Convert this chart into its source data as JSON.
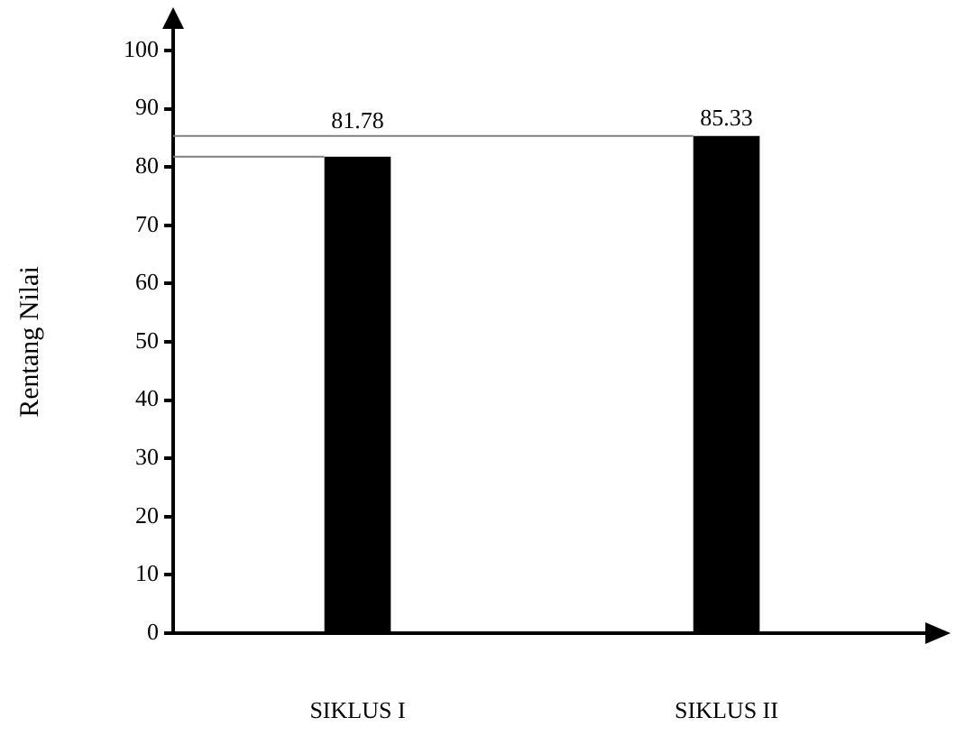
{
  "chart_data": {
    "type": "bar",
    "ylabel": "Rentang Nilai",
    "categories": [
      "SIKLUS I",
      "SIKLUS II"
    ],
    "values": [
      81.78,
      85.33
    ],
    "color": "#000000",
    "ylim": [
      0,
      100
    ],
    "yticks": [
      0,
      10,
      20,
      30,
      40,
      50,
      60,
      70,
      80,
      90,
      100
    ],
    "data_labels": true,
    "grid": false,
    "legend": false,
    "ref_lines": [
      {
        "axis": "y",
        "value": 81.78,
        "color": "#808080"
      },
      {
        "axis": "y",
        "value": 85.33,
        "color": "#808080"
      }
    ]
  }
}
